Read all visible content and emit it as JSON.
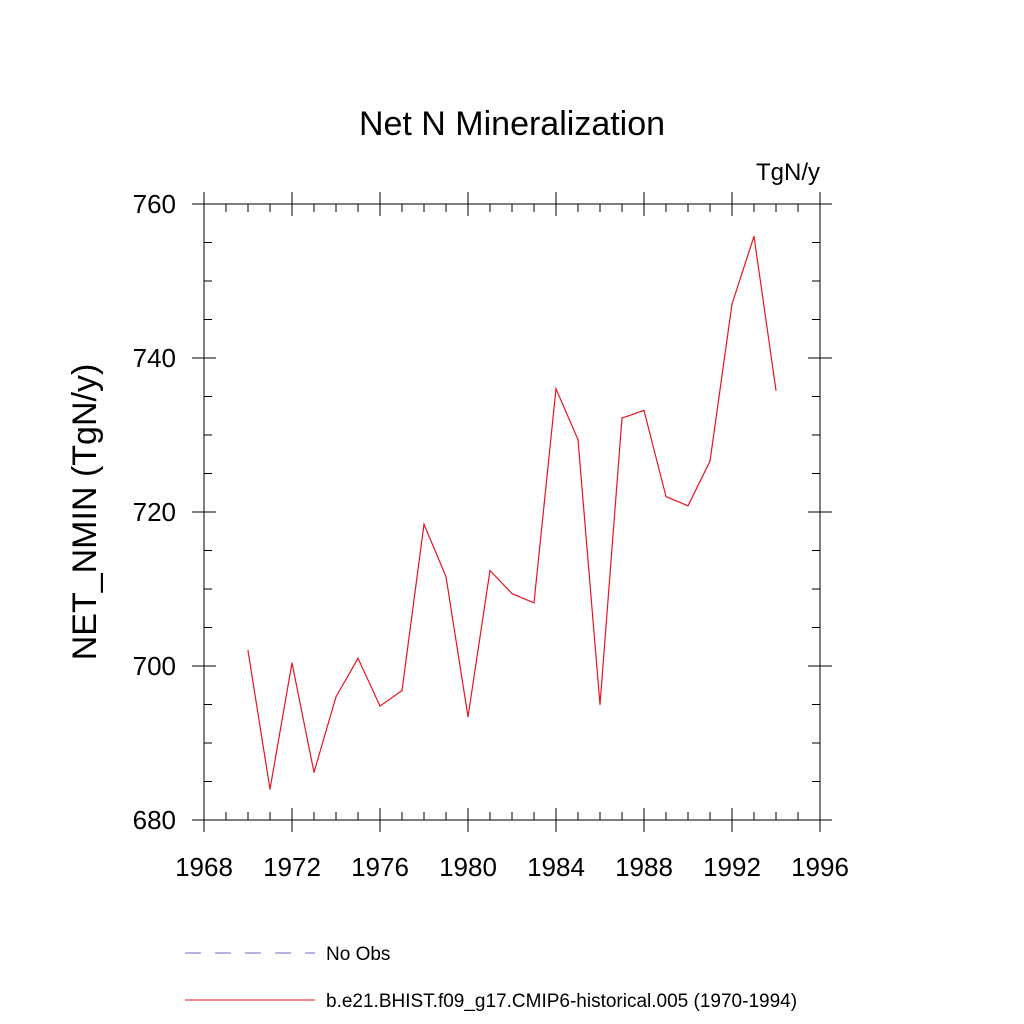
{
  "chart_data": {
    "type": "line",
    "title": "Net N Mineralization",
    "units_label": "TgN/y",
    "ylabel": "NET_NMIN  (TgN/y)",
    "xlabel": "",
    "xlim": [
      1968,
      1996
    ],
    "ylim": [
      680,
      760
    ],
    "x_ticks": [
      1968,
      1972,
      1976,
      1980,
      1984,
      1988,
      1992,
      1996
    ],
    "y_ticks": [
      680,
      700,
      720,
      740,
      760
    ],
    "x_minor_step": 1,
    "y_minor_step": 5,
    "grid": false,
    "legend_position": "bottom",
    "series": [
      {
        "name": "b.e21.BHIST.f09_g17.CMIP6-historical.005 (1970-1994)",
        "color": "#e8141e",
        "dash": "solid",
        "x": [
          1970,
          1971,
          1972,
          1973,
          1974,
          1975,
          1976,
          1977,
          1978,
          1979,
          1980,
          1981,
          1982,
          1983,
          1984,
          1985,
          1986,
          1987,
          1988,
          1989,
          1990,
          1991,
          1992,
          1993,
          1994
        ],
        "y": [
          702.0,
          684.0,
          700.4,
          686.2,
          696.0,
          701.0,
          694.8,
          696.8,
          718.4,
          711.6,
          693.4,
          712.4,
          709.4,
          708.2,
          736.0,
          729.4,
          695.0,
          732.2,
          733.2,
          722.0,
          720.8,
          726.6,
          747.0,
          755.8,
          735.8
        ]
      }
    ],
    "legend": [
      {
        "label": "No Obs",
        "color": "#6a6ac8",
        "dash": "dashed"
      },
      {
        "label": "b.e21.BHIST.f09_g17.CMIP6-historical.005 (1970-1994)",
        "color": "#e8141e",
        "dash": "solid"
      }
    ]
  }
}
